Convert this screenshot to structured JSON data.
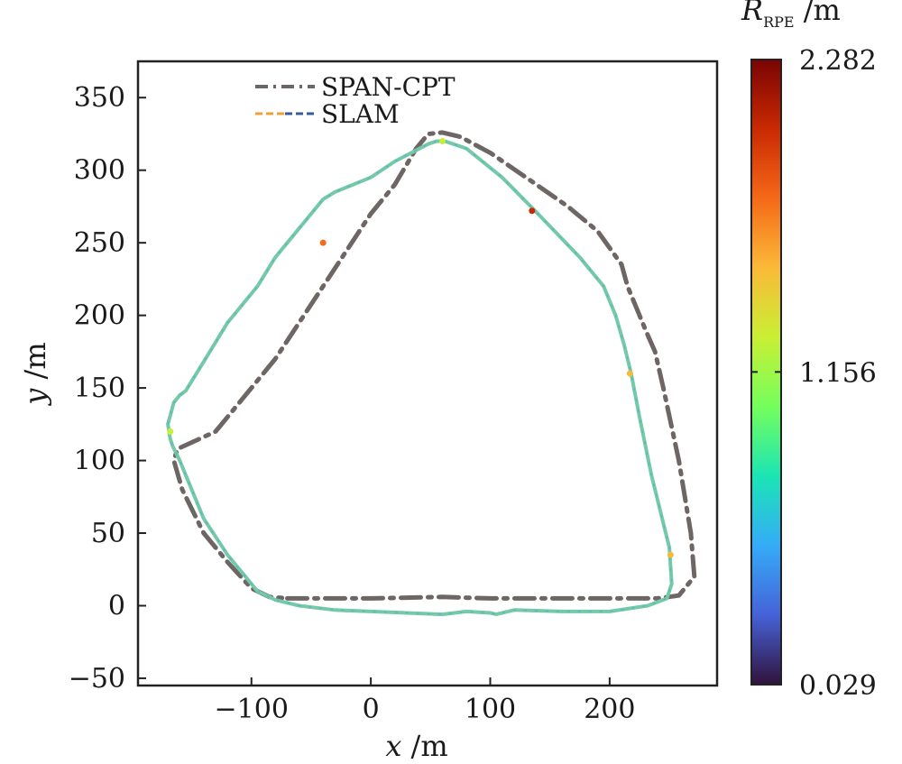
{
  "chart_data": {
    "type": "line",
    "title": "",
    "xlabel": {
      "var": "x",
      "unit": " /m"
    },
    "ylabel": {
      "var": "y",
      "unit": " /m"
    },
    "xlim": [
      -195,
      290
    ],
    "ylim": [
      -55,
      375
    ],
    "xticks": [
      -100,
      0,
      100,
      200
    ],
    "yticks": [
      -50,
      0,
      50,
      100,
      150,
      200,
      250,
      300,
      350
    ],
    "grid": false,
    "legend": {
      "position": "top-center"
    },
    "colorbar": {
      "label_var": "R",
      "label_sub": "RPE",
      "label_unit": " /m",
      "min": 0.029,
      "max": 2.282,
      "ticks": [
        {
          "value": 2.282,
          "label": "2.282"
        },
        {
          "value": 1.156,
          "label": "1.156"
        },
        {
          "value": 0.029,
          "label": "0.029"
        }
      ],
      "colormap": [
        "#30123b",
        "#4662d8",
        "#35abf8",
        "#1be5b5",
        "#74fe5d",
        "#c9ef34",
        "#fbb938",
        "#f56918",
        "#c92903",
        "#7a0403"
      ]
    },
    "series": [
      {
        "name": "SPAN-CPT",
        "style": "dash-dot",
        "color": "#6e6664",
        "x": [
          -70,
          0,
          60,
          100,
          160,
          240,
          258,
          271,
          268,
          258,
          245,
          238,
          230,
          225,
          215,
          210,
          190,
          165,
          130,
          100,
          75,
          60,
          48,
          38,
          20,
          0,
          -40,
          -80,
          -130,
          -162,
          -165,
          -158,
          -140,
          -120,
          -100,
          -85,
          -70
        ],
        "y": [
          5,
          5,
          6,
          5,
          5,
          5,
          7,
          20,
          50,
          100,
          150,
          175,
          190,
          200,
          220,
          235,
          258,
          275,
          295,
          312,
          323,
          326,
          325,
          315,
          290,
          270,
          220,
          170,
          120,
          108,
          100,
          80,
          50,
          30,
          12,
          6,
          5
        ]
      },
      {
        "name": "SLAM",
        "style": "solid",
        "color": "#74c9a8",
        "legend_colors": [
          "#f0a030",
          "#3a5a9e"
        ],
        "x": [
          -170,
          -165,
          -160,
          -155,
          -140,
          -120,
          -95,
          -80,
          -60,
          -40,
          -30,
          0,
          20,
          48,
          55,
          62,
          80,
          110,
          140,
          175,
          195,
          205,
          212,
          218,
          225,
          235,
          250,
          252,
          248,
          232,
          200,
          160,
          120,
          105,
          100,
          80,
          60,
          30,
          0,
          -30,
          -60,
          -70,
          -80,
          -95,
          -120,
          -140,
          -155,
          -160,
          -166,
          -168,
          -170
        ],
        "y": [
          125,
          140,
          145,
          148,
          168,
          195,
          220,
          240,
          260,
          280,
          285,
          295,
          306,
          318,
          320,
          320,
          315,
          295,
          270,
          240,
          220,
          200,
          180,
          160,
          130,
          90,
          40,
          15,
          5,
          0,
          -4,
          -4,
          -3,
          -6,
          -5,
          -4,
          -6,
          -5,
          -4,
          -3,
          0,
          2,
          4,
          10,
          35,
          60,
          90,
          100,
          110,
          115,
          125
        ],
        "rpe_highlights": [
          {
            "x": -40,
            "y": 250,
            "value": 1.8
          },
          {
            "x": 135,
            "y": 272,
            "value": 2.1
          },
          {
            "x": 217,
            "y": 160,
            "value": 1.45
          },
          {
            "x": 251,
            "y": 35,
            "value": 1.5
          },
          {
            "x": 60,
            "y": 320,
            "value": 1.3
          },
          {
            "x": -168,
            "y": 120,
            "value": 1.35
          }
        ]
      }
    ]
  }
}
